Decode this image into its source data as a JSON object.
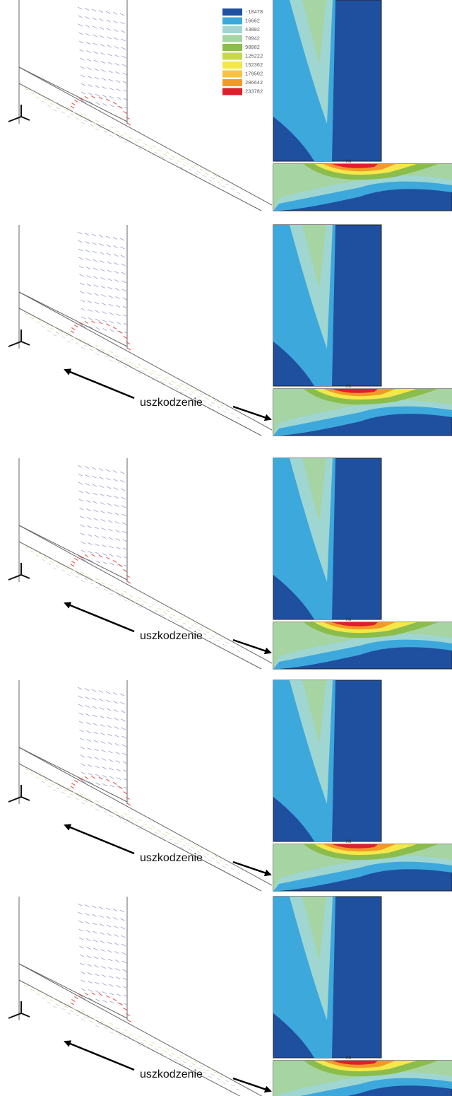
{
  "legend": {
    "entries": [
      {
        "label": "-10478",
        "color": "#1f4f9f"
      },
      {
        "label": "16662",
        "color": "#3da8dc"
      },
      {
        "label": "43802",
        "color": "#9fd6d2"
      },
      {
        "label": "70942",
        "color": "#a6d4a2"
      },
      {
        "label": "98082",
        "color": "#8bbd4c"
      },
      {
        "label": "125222",
        "color": "#c5d84a"
      },
      {
        "label": "152362",
        "color": "#f4e74a"
      },
      {
        "label": "179502",
        "color": "#f6c444"
      },
      {
        "label": "206642",
        "color": "#f39a26"
      },
      {
        "label": "233782",
        "color": "#df1f2b"
      }
    ]
  },
  "panels": [
    {
      "max_label": "MX"
    },
    {
      "max_label": "MX",
      "annotation": "uszkodzenie"
    },
    {
      "max_label": "MX",
      "annotation": "uszkodzenie"
    },
    {
      "max_label": "MX",
      "annotation": "uszkodzenie"
    },
    {
      "max_label": "MX",
      "annotation": "uszkodzenie"
    }
  ]
}
